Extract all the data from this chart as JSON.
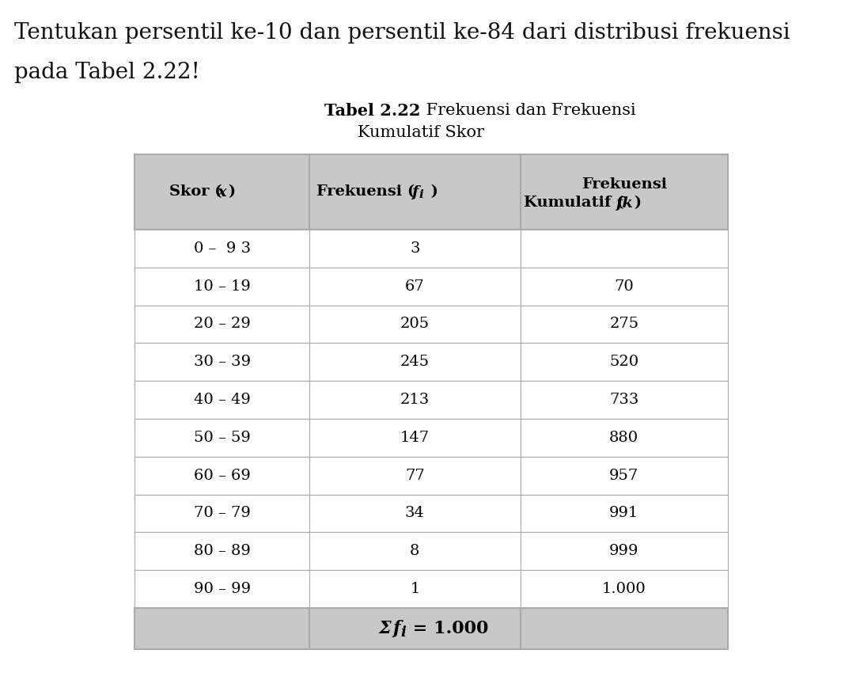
{
  "question_line1": "Tentukan persentil ke-10 dan persentil ke-84 dari distribusi frekuensi",
  "question_line2": "pada Tabel 2.22!",
  "title_bold": "Tabel 2.22",
  "title_normal": " Frekuensi dan Frekuensi",
  "title_line2": "Kumulatif Skor",
  "rows": [
    [
      "0 –  9 3",
      "3",
      ""
    ],
    [
      "10 – 19",
      "67",
      "70"
    ],
    [
      "20 – 29",
      "205",
      "275"
    ],
    [
      "30 – 39",
      "245",
      "520"
    ],
    [
      "40 – 49",
      "213",
      "733"
    ],
    [
      "50 – 59",
      "147",
      "880"
    ],
    [
      "60 – 69",
      "77",
      "957"
    ],
    [
      "70 – 79",
      "34",
      "991"
    ],
    [
      "80 – 89",
      "8",
      "999"
    ],
    [
      "90 – 99",
      "1",
      "1.000"
    ]
  ],
  "header_bg": "#c8c8c8",
  "row_bg": "#ffffff",
  "footer_bg": "#c8c8c8",
  "border_color": "#aaaaaa",
  "text_color": "#000000",
  "question_color": "#111111",
  "background_color": "#ffffff",
  "question_fontsize": 20,
  "title_fontsize": 15,
  "header_fontsize": 14,
  "data_fontsize": 14,
  "footer_fontsize": 15
}
